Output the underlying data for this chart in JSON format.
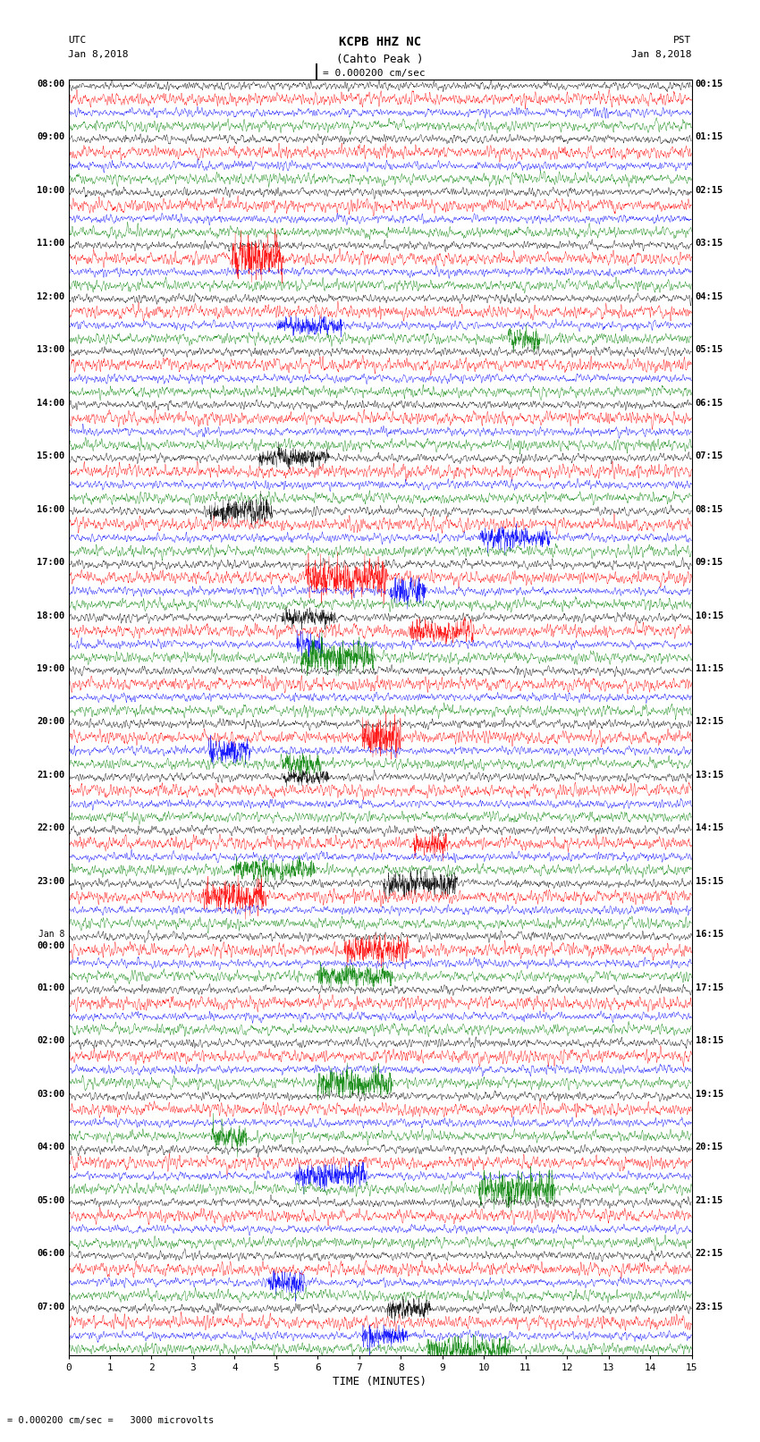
{
  "title_line1": "KCPB HHZ NC",
  "title_line2": "(Cahto Peak )",
  "scale_label": "= 0.000200 cm/sec",
  "bottom_label": "= 0.000200 cm/sec =   3000 microvolts",
  "xlabel": "TIME (MINUTES)",
  "left_label_top": "UTC",
  "left_label_date": "Jan 8,2018",
  "right_label_top": "PST",
  "right_label_date": "Jan 8,2018",
  "left_times_utc": [
    "08:00",
    "09:00",
    "10:00",
    "11:00",
    "12:00",
    "13:00",
    "14:00",
    "15:00",
    "16:00",
    "17:00",
    "18:00",
    "19:00",
    "20:00",
    "21:00",
    "22:00",
    "23:00",
    "Jan 8\n00:00",
    "01:00",
    "02:00",
    "03:00",
    "04:00",
    "05:00",
    "06:00",
    "07:00"
  ],
  "right_times_pst": [
    "00:15",
    "01:15",
    "02:15",
    "03:15",
    "04:15",
    "05:15",
    "06:15",
    "07:15",
    "08:15",
    "09:15",
    "10:15",
    "11:15",
    "12:15",
    "13:15",
    "14:15",
    "15:15",
    "16:15",
    "17:15",
    "18:15",
    "19:15",
    "20:15",
    "21:15",
    "22:15",
    "23:15"
  ],
  "n_rows": 24,
  "traces_per_row": 4,
  "colors": [
    "black",
    "red",
    "blue",
    "green"
  ],
  "bg_color": "white",
  "fig_width": 8.5,
  "fig_height": 16.13,
  "dpi": 100,
  "x_min": 0,
  "x_max": 15,
  "x_ticks": [
    0,
    1,
    2,
    3,
    4,
    5,
    6,
    7,
    8,
    9,
    10,
    11,
    12,
    13,
    14,
    15
  ],
  "noise_amplitude": 0.35,
  "noise_amplitude_red": 0.55,
  "noise_amplitude_green": 0.45
}
